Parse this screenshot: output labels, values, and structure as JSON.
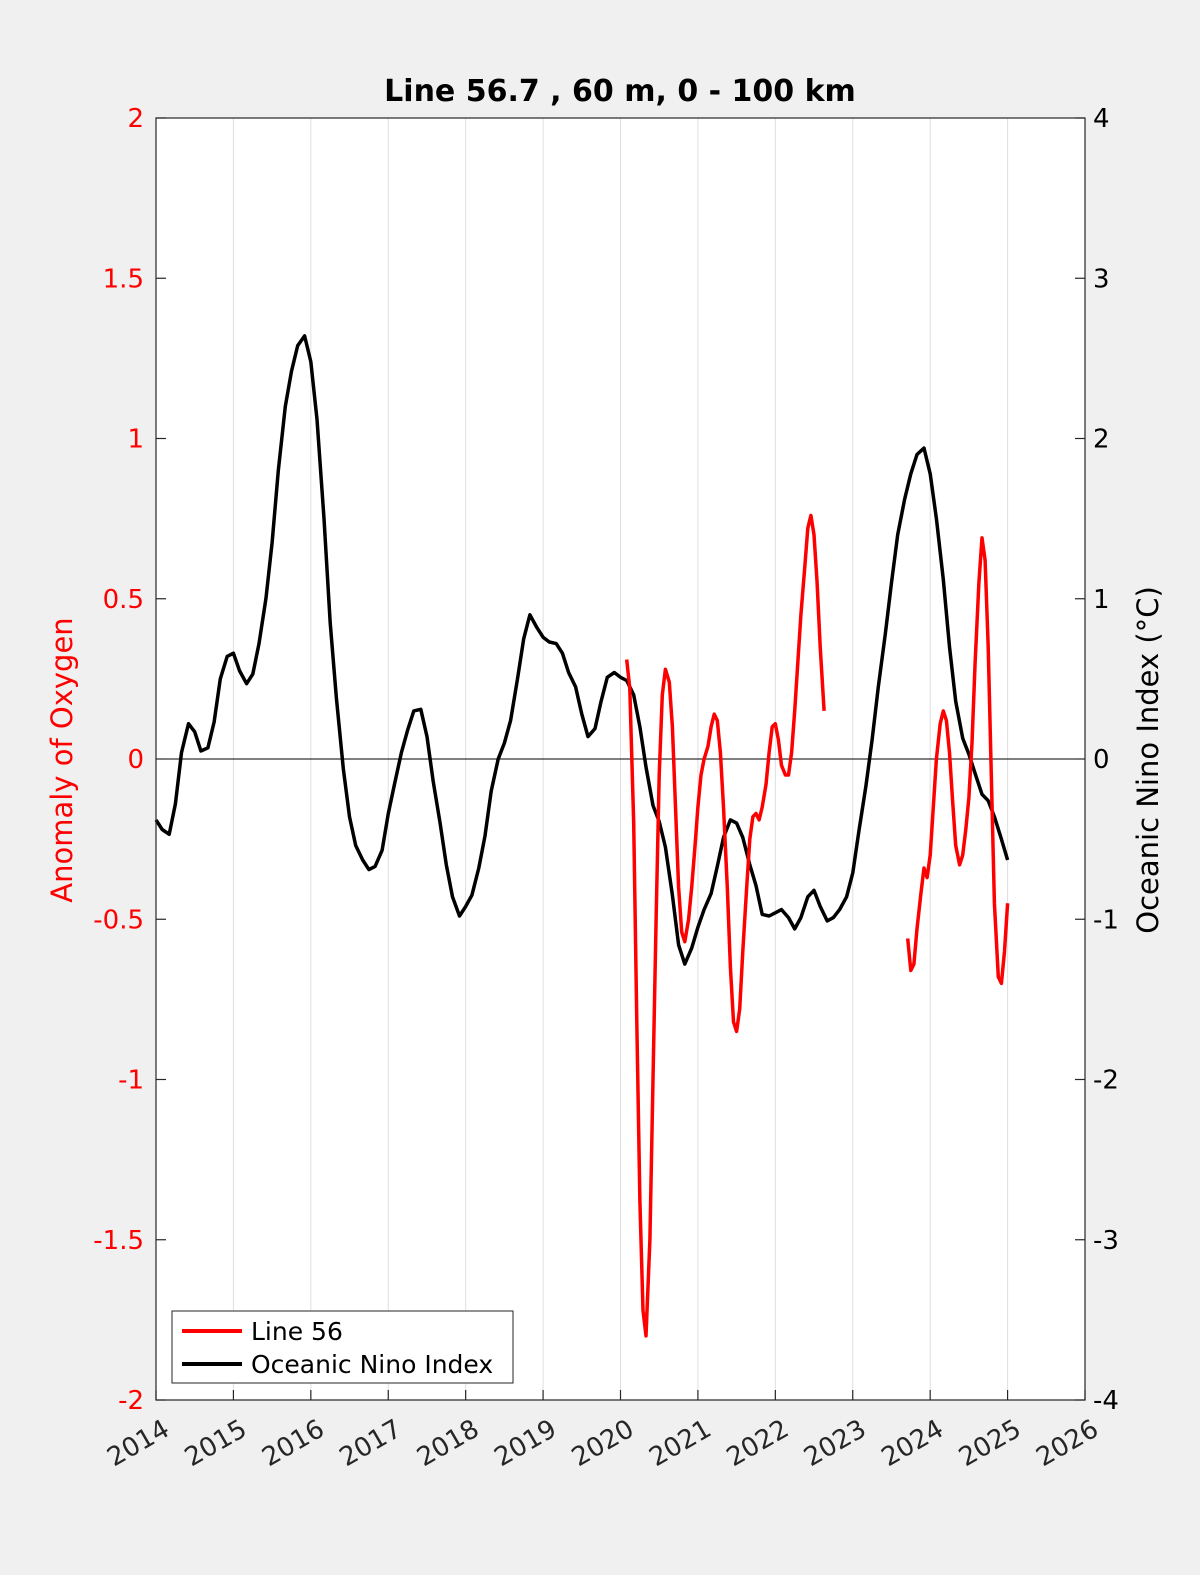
{
  "chart_data": {
    "type": "line",
    "title": "Line 56.7 , 60 m, 0 - 100 km",
    "xlabel": "",
    "ylabel_left": "Anomaly of Oxygen",
    "ylabel_right": "Oceanic Nino Index (°C)",
    "xlim": [
      2014,
      2026
    ],
    "ylim_left": [
      -2,
      2
    ],
    "ylim_right": [
      -4,
      4
    ],
    "x_ticks": [
      2014,
      2015,
      2016,
      2017,
      2018,
      2019,
      2020,
      2021,
      2022,
      2023,
      2024,
      2025,
      2026
    ],
    "x_tick_labels": [
      "2014",
      "2015",
      "2016",
      "2017",
      "2018",
      "2019",
      "2020",
      "2021",
      "2022",
      "2023",
      "2024",
      "2025",
      "2026"
    ],
    "y_left_ticks": [
      2,
      1.5,
      1,
      0.5,
      0,
      -0.5,
      -1,
      -1.5,
      -2
    ],
    "y_left_tick_labels": [
      "2",
      "1.5",
      "1",
      "0.5",
      "0",
      "-0.5",
      "-1",
      "-1.5",
      "-2"
    ],
    "y_right_ticks": [
      4,
      3,
      2,
      1,
      0,
      -1,
      -2,
      -3,
      -4
    ],
    "y_right_tick_labels": [
      "4",
      "3",
      "2",
      "1",
      "0",
      "-1",
      "-2",
      "-3",
      "-4"
    ],
    "grid": "vertical",
    "legend_position": "bottom-left",
    "colors": {
      "line56": "#ff0000",
      "oni": "#000000",
      "left_axis": "#ff0000",
      "right_axis": "#000000"
    },
    "series": [
      {
        "name": "Line 56",
        "axis": "left",
        "segments": [
          [
            [
              2020.08,
              0.31
            ],
            [
              2020.12,
              0.22
            ],
            [
              2020.17,
              -0.2
            ],
            [
              2020.21,
              -0.82
            ],
            [
              2020.25,
              -1.38
            ],
            [
              2020.29,
              -1.72
            ],
            [
              2020.33,
              -1.8
            ],
            [
              2020.38,
              -1.5
            ],
            [
              2020.42,
              -1.0
            ],
            [
              2020.46,
              -0.5
            ],
            [
              2020.5,
              -0.05
            ],
            [
              2020.54,
              0.2
            ],
            [
              2020.58,
              0.28
            ],
            [
              2020.63,
              0.24
            ],
            [
              2020.67,
              0.1
            ],
            [
              2020.71,
              -0.15
            ],
            [
              2020.75,
              -0.4
            ],
            [
              2020.79,
              -0.54
            ],
            [
              2020.83,
              -0.57
            ],
            [
              2020.88,
              -0.5
            ],
            [
              2020.92,
              -0.4
            ],
            [
              2020.96,
              -0.28
            ],
            [
              2021.0,
              -0.15
            ],
            [
              2021.04,
              -0.05
            ],
            [
              2021.08,
              0.0
            ],
            [
              2021.13,
              0.04
            ],
            [
              2021.17,
              0.1
            ],
            [
              2021.21,
              0.14
            ],
            [
              2021.25,
              0.12
            ],
            [
              2021.29,
              0.02
            ],
            [
              2021.33,
              -0.15
            ],
            [
              2021.38,
              -0.4
            ],
            [
              2021.42,
              -0.65
            ],
            [
              2021.46,
              -0.82
            ],
            [
              2021.5,
              -0.85
            ],
            [
              2021.54,
              -0.78
            ],
            [
              2021.58,
              -0.6
            ],
            [
              2021.63,
              -0.4
            ],
            [
              2021.67,
              -0.25
            ],
            [
              2021.71,
              -0.18
            ],
            [
              2021.75,
              -0.17
            ],
            [
              2021.79,
              -0.19
            ],
            [
              2021.83,
              -0.15
            ],
            [
              2021.88,
              -0.08
            ],
            [
              2021.92,
              0.02
            ],
            [
              2021.96,
              0.1
            ],
            [
              2022.0,
              0.11
            ],
            [
              2022.04,
              0.06
            ],
            [
              2022.08,
              -0.02
            ],
            [
              2022.13,
              -0.05
            ],
            [
              2022.17,
              -0.05
            ],
            [
              2022.21,
              0.02
            ],
            [
              2022.25,
              0.15
            ],
            [
              2022.29,
              0.3
            ],
            [
              2022.33,
              0.45
            ],
            [
              2022.38,
              0.6
            ],
            [
              2022.42,
              0.72
            ],
            [
              2022.46,
              0.76
            ],
            [
              2022.5,
              0.7
            ],
            [
              2022.54,
              0.55
            ],
            [
              2022.58,
              0.35
            ],
            [
              2022.63,
              0.15
            ]
          ],
          [
            [
              2023.71,
              -0.56
            ],
            [
              2023.75,
              -0.66
            ],
            [
              2023.79,
              -0.64
            ],
            [
              2023.83,
              -0.53
            ],
            [
              2023.88,
              -0.42
            ],
            [
              2023.92,
              -0.34
            ],
            [
              2023.96,
              -0.37
            ],
            [
              2024.0,
              -0.3
            ],
            [
              2024.04,
              -0.15
            ],
            [
              2024.08,
              0.0
            ],
            [
              2024.13,
              0.11
            ],
            [
              2024.17,
              0.15
            ],
            [
              2024.21,
              0.12
            ],
            [
              2024.25,
              0.02
            ],
            [
              2024.29,
              -0.13
            ],
            [
              2024.33,
              -0.27
            ],
            [
              2024.38,
              -0.33
            ],
            [
              2024.42,
              -0.3
            ],
            [
              2024.46,
              -0.22
            ],
            [
              2024.5,
              -0.12
            ],
            [
              2024.54,
              0.05
            ],
            [
              2024.58,
              0.3
            ],
            [
              2024.63,
              0.55
            ],
            [
              2024.67,
              0.69
            ],
            [
              2024.71,
              0.62
            ],
            [
              2024.75,
              0.35
            ],
            [
              2024.79,
              -0.05
            ],
            [
              2024.83,
              -0.45
            ],
            [
              2024.88,
              -0.68
            ],
            [
              2024.92,
              -0.7
            ],
            [
              2024.96,
              -0.6
            ],
            [
              2025.0,
              -0.45
            ]
          ]
        ]
      },
      {
        "name": "Oceanic Nino Index",
        "axis": "right",
        "x": [
          2014.0,
          2014.08,
          2014.17,
          2014.25,
          2014.33,
          2014.42,
          2014.5,
          2014.58,
          2014.67,
          2014.75,
          2014.83,
          2014.92,
          2015.0,
          2015.08,
          2015.17,
          2015.25,
          2015.33,
          2015.42,
          2015.5,
          2015.58,
          2015.67,
          2015.75,
          2015.83,
          2015.92,
          2016.0,
          2016.08,
          2016.17,
          2016.25,
          2016.33,
          2016.42,
          2016.5,
          2016.58,
          2016.67,
          2016.75,
          2016.83,
          2016.92,
          2017.0,
          2017.08,
          2017.17,
          2017.25,
          2017.33,
          2017.42,
          2017.5,
          2017.58,
          2017.67,
          2017.75,
          2017.83,
          2017.92,
          2018.0,
          2018.08,
          2018.17,
          2018.25,
          2018.33,
          2018.42,
          2018.5,
          2018.58,
          2018.67,
          2018.75,
          2018.83,
          2018.92,
          2019.0,
          2019.08,
          2019.17,
          2019.25,
          2019.33,
          2019.42,
          2019.5,
          2019.58,
          2019.67,
          2019.75,
          2019.83,
          2019.92,
          2020.0,
          2020.08,
          2020.17,
          2020.25,
          2020.33,
          2020.42,
          2020.5,
          2020.58,
          2020.67,
          2020.75,
          2020.83,
          2020.92,
          2021.0,
          2021.08,
          2021.17,
          2021.25,
          2021.33,
          2021.42,
          2021.5,
          2021.58,
          2021.67,
          2021.75,
          2021.83,
          2021.92,
          2022.0,
          2022.08,
          2022.17,
          2022.25,
          2022.33,
          2022.42,
          2022.5,
          2022.58,
          2022.67,
          2022.75,
          2022.83,
          2022.92,
          2023.0,
          2023.08,
          2023.17,
          2023.25,
          2023.33,
          2023.42,
          2023.5,
          2023.58,
          2023.67,
          2023.75,
          2023.83,
          2023.92,
          2024.0,
          2024.08,
          2024.17,
          2024.25,
          2024.33,
          2024.42,
          2024.5,
          2024.58,
          2024.67,
          2024.75,
          2024.83,
          2024.92,
          2025.0
        ],
        "values": [
          -0.38,
          -0.44,
          -0.47,
          -0.28,
          0.04,
          0.22,
          0.17,
          0.05,
          0.07,
          0.23,
          0.5,
          0.64,
          0.66,
          0.55,
          0.47,
          0.53,
          0.72,
          1.0,
          1.35,
          1.8,
          2.2,
          2.42,
          2.58,
          2.64,
          2.48,
          2.12,
          1.5,
          0.85,
          0.38,
          -0.06,
          -0.36,
          -0.54,
          -0.63,
          -0.69,
          -0.67,
          -0.57,
          -0.34,
          -0.16,
          0.04,
          0.18,
          0.3,
          0.31,
          0.14,
          -0.14,
          -0.4,
          -0.66,
          -0.86,
          -0.98,
          -0.92,
          -0.85,
          -0.68,
          -0.48,
          -0.2,
          0.0,
          0.1,
          0.24,
          0.5,
          0.75,
          0.9,
          0.82,
          0.76,
          0.73,
          0.72,
          0.66,
          0.54,
          0.45,
          0.28,
          0.14,
          0.19,
          0.36,
          0.51,
          0.54,
          0.51,
          0.49,
          0.4,
          0.2,
          -0.05,
          -0.29,
          -0.39,
          -0.55,
          -0.85,
          -1.16,
          -1.28,
          -1.18,
          -1.05,
          -0.94,
          -0.84,
          -0.67,
          -0.49,
          -0.38,
          -0.4,
          -0.49,
          -0.66,
          -0.79,
          -0.97,
          -0.98,
          -0.96,
          -0.94,
          -0.99,
          -1.06,
          -0.99,
          -0.86,
          -0.82,
          -0.92,
          -1.01,
          -0.99,
          -0.94,
          -0.86,
          -0.71,
          -0.45,
          -0.17,
          0.12,
          0.45,
          0.78,
          1.1,
          1.4,
          1.62,
          1.78,
          1.9,
          1.94,
          1.78,
          1.5,
          1.12,
          0.7,
          0.36,
          0.13,
          0.03,
          -0.09,
          -0.22,
          -0.26,
          -0.36,
          -0.5,
          -0.63
        ]
      }
    ]
  }
}
